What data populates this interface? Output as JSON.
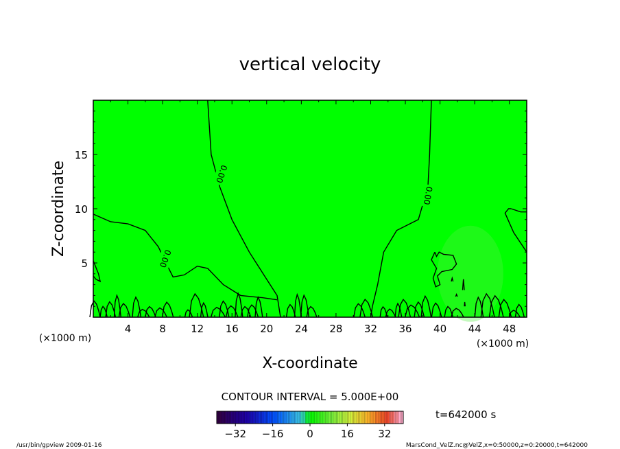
{
  "chart_data": {
    "type": "contour",
    "title": "vertical velocity",
    "xlabel": "X-coordinate",
    "ylabel": "Z-coordinate",
    "x_unit": "(×1000 m)",
    "xlim": [
      0,
      50
    ],
    "ylim": [
      0,
      20
    ],
    "x_ticks": [
      "4",
      "8",
      "12",
      "16",
      "20",
      "24",
      "28",
      "32",
      "36",
      "40",
      "44",
      "48"
    ],
    "y_ticks": [
      "5",
      "10",
      "15"
    ],
    "background_color": "#00ff00",
    "contour_labels": [
      "0.00",
      "0.00",
      "0.00"
    ],
    "contour_interval_text": "CONTOUR INTERVAL = 5.000E+00",
    "time_text": "t=642000 s",
    "colorbar": {
      "ticks": [
        "-32",
        "-16",
        "0",
        "16",
        "32"
      ],
      "range": [
        -40,
        40
      ]
    },
    "footer_left": "/usr/bin/gpview  2009-01-16",
    "footer_right": "MarsCond_VelZ.nc@VelZ,x=0:50000,z=0:20000,t=642000"
  }
}
